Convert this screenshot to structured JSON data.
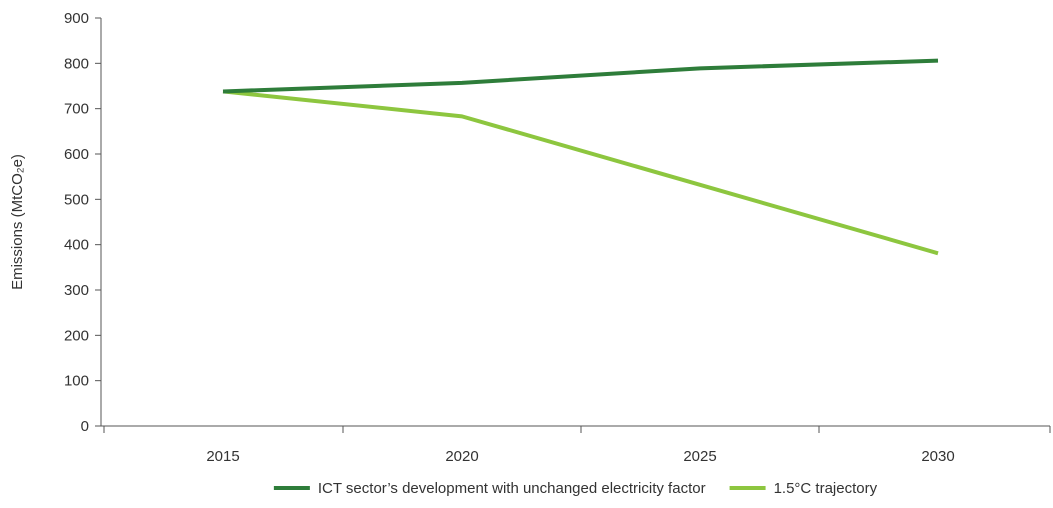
{
  "chart_data": {
    "type": "line",
    "title": "",
    "xlabel": "",
    "ylabel": "Emissions (MtCO₂e)",
    "x": [
      2015,
      2020,
      2025,
      2030
    ],
    "ylim": [
      0,
      900
    ],
    "y_ticks": [
      0,
      100,
      200,
      300,
      400,
      500,
      600,
      700,
      800,
      900
    ],
    "grid": false,
    "legend_position": "bottom",
    "series": [
      {
        "name": "ICT sector’s development with unchanged electricity factor",
        "color": "#2E7D3A",
        "values": [
          738,
          757,
          789,
          806
        ]
      },
      {
        "name": "1.5°C trajectory",
        "color": "#8DC63F",
        "values": [
          738,
          683,
          532,
          381
        ]
      }
    ]
  }
}
